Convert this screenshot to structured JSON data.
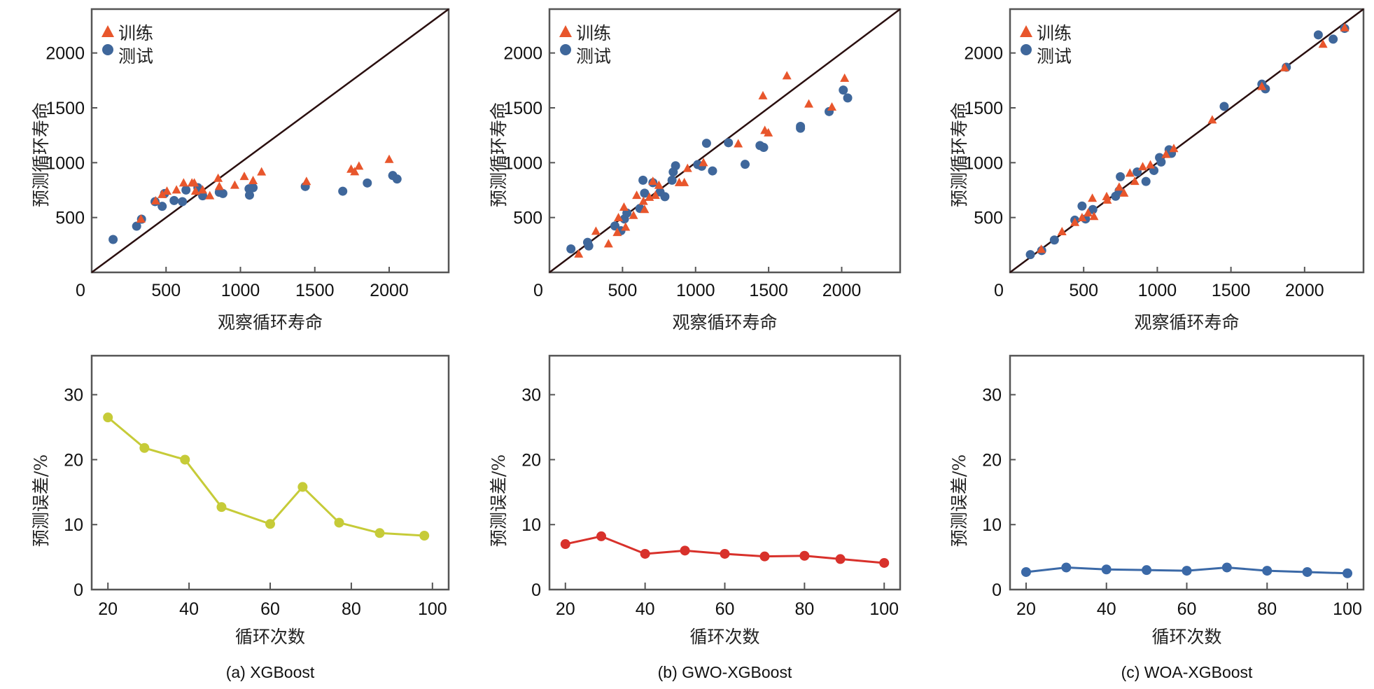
{
  "chart_data": [
    {
      "panel": "a",
      "caption": "(a) XGBoost",
      "scatter": {
        "type": "scatter",
        "xlabel": "观察循环寿命",
        "ylabel": "预测循环寿命",
        "xlim": [
          0,
          2400
        ],
        "ylim": [
          0,
          2400
        ],
        "zero_label": "0",
        "xticks": [
          500,
          1000,
          1500,
          2000
        ],
        "yticks": [
          500,
          1000,
          1500,
          2000
        ],
        "reference_line": "y = x",
        "legend": {
          "position": "top-left",
          "train_label": "训练",
          "test_label": "测试"
        },
        "train": [
          [
            331,
            485
          ],
          [
            430,
            651
          ],
          [
            474,
            709
          ],
          [
            506,
            740
          ],
          [
            570,
            751
          ],
          [
            618,
            815
          ],
          [
            674,
            815
          ],
          [
            690,
            815
          ],
          [
            698,
            740
          ],
          [
            746,
            751
          ],
          [
            794,
            698
          ],
          [
            850,
            857
          ],
          [
            858,
            783
          ],
          [
            962,
            794
          ],
          [
            1026,
            874
          ],
          [
            1085,
            836
          ],
          [
            1142,
            915
          ],
          [
            1444,
            828
          ],
          [
            1744,
            940
          ],
          [
            1768,
            917
          ],
          [
            1797,
            968
          ],
          [
            2000,
            1029
          ]
        ],
        "test": [
          [
            144,
            300
          ],
          [
            302,
            421
          ],
          [
            335,
            485
          ],
          [
            426,
            645
          ],
          [
            474,
            602
          ],
          [
            490,
            719
          ],
          [
            554,
            655
          ],
          [
            610,
            645
          ],
          [
            634,
            751
          ],
          [
            714,
            772
          ],
          [
            746,
            698
          ],
          [
            858,
            730
          ],
          [
            882,
            719
          ],
          [
            1058,
            762
          ],
          [
            1061,
            704
          ],
          [
            1085,
            772
          ],
          [
            1436,
            783
          ],
          [
            1688,
            740
          ],
          [
            1853,
            815
          ],
          [
            2024,
            883
          ],
          [
            2053,
            851
          ]
        ]
      },
      "line": {
        "type": "line",
        "xlabel": "循环次数",
        "ylabel": "预测误差/%",
        "xlim": [
          16,
          104
        ],
        "ylim": [
          0,
          36
        ],
        "xticks": [
          20,
          40,
          60,
          80,
          100
        ],
        "yticks": [
          0,
          10,
          20,
          30
        ],
        "x": [
          20,
          29,
          39,
          48,
          60,
          68,
          77,
          87,
          98
        ],
        "y": [
          26.5,
          21.8,
          20.0,
          12.7,
          10.1,
          15.8,
          10.3,
          8.7,
          8.3
        ],
        "color": "#c6cb38"
      }
    },
    {
      "panel": "b",
      "caption": "(b) GWO-XGBoost",
      "scatter": {
        "type": "scatter",
        "xlabel": "观察循环寿命",
        "ylabel": "预测循环寿命",
        "xlim": [
          0,
          2400
        ],
        "ylim": [
          0,
          2400
        ],
        "zero_label": "0",
        "xticks": [
          500,
          1000,
          1500,
          2000
        ],
        "yticks": [
          500,
          1000,
          1500,
          2000
        ],
        "reference_line": "y = x",
        "legend": {
          "position": "top-left",
          "train_label": "训练",
          "test_label": "测试"
        },
        "train": [
          [
            200,
            167
          ],
          [
            318,
            374
          ],
          [
            404,
            259
          ],
          [
            464,
            363
          ],
          [
            472,
            498
          ],
          [
            510,
            594
          ],
          [
            521,
            412
          ],
          [
            575,
            519
          ],
          [
            597,
            701
          ],
          [
            643,
            647
          ],
          [
            651,
            573
          ],
          [
            684,
            684
          ],
          [
            708,
            829
          ],
          [
            725,
            701
          ],
          [
            749,
            793
          ],
          [
            888,
            818
          ],
          [
            923,
            818
          ],
          [
            945,
            947
          ],
          [
            1054,
            1000
          ],
          [
            1292,
            1171
          ],
          [
            1461,
            1609
          ],
          [
            1474,
            1293
          ],
          [
            1498,
            1271
          ],
          [
            1625,
            1791
          ],
          [
            1775,
            1534
          ],
          [
            1933,
            1506
          ],
          [
            2020,
            1769
          ]
        ],
        "test": [
          [
            147,
            214
          ],
          [
            261,
            274
          ],
          [
            269,
            241
          ],
          [
            448,
            423
          ],
          [
            489,
            380
          ],
          [
            513,
            487
          ],
          [
            530,
            541
          ],
          [
            619,
            583
          ],
          [
            640,
            840
          ],
          [
            651,
            722
          ],
          [
            708,
            818
          ],
          [
            757,
            733
          ],
          [
            790,
            690
          ],
          [
            839,
            840
          ],
          [
            847,
            915
          ],
          [
            863,
            972
          ],
          [
            1015,
            983
          ],
          [
            1042,
            968
          ],
          [
            1075,
            1177
          ],
          [
            1116,
            925
          ],
          [
            1225,
            1182
          ],
          [
            1339,
            985
          ],
          [
            1441,
            1156
          ],
          [
            1466,
            1139
          ],
          [
            1718,
            1331
          ],
          [
            1718,
            1314
          ],
          [
            1914,
            1466
          ],
          [
            2011,
            1662
          ],
          [
            2041,
            1590
          ]
        ]
      },
      "line": {
        "type": "line",
        "xlabel": "循环次数",
        "ylabel": "预测误差/%",
        "xlim": [
          16,
          104
        ],
        "ylim": [
          0,
          36
        ],
        "xticks": [
          20,
          40,
          60,
          80,
          100
        ],
        "yticks": [
          0,
          10,
          20,
          30
        ],
        "x": [
          20,
          29,
          40,
          50,
          60,
          70,
          80,
          89,
          100
        ],
        "y": [
          7.0,
          8.2,
          5.5,
          6.0,
          5.5,
          5.1,
          5.2,
          4.7,
          4.1
        ],
        "color": "#d8312b"
      }
    },
    {
      "panel": "c",
      "caption": "(c) WOA-XGBoost",
      "scatter": {
        "type": "scatter",
        "xlabel": "观察循环寿命",
        "ylabel": "预测循环寿命",
        "xlim": [
          0,
          2400
        ],
        "ylim": [
          0,
          2400
        ],
        "zero_label": "0",
        "xticks": [
          500,
          1000,
          1500,
          2000
        ],
        "yticks": [
          500,
          1000,
          1500,
          2000
        ],
        "reference_line": "y = x",
        "legend": {
          "position": "top-left",
          "train_label": "训练",
          "test_label": "测试"
        },
        "train": [
          [
            212,
            209
          ],
          [
            353,
            370
          ],
          [
            440,
            455
          ],
          [
            489,
            498
          ],
          [
            530,
            541
          ],
          [
            559,
            675
          ],
          [
            570,
            509
          ],
          [
            656,
            690
          ],
          [
            660,
            658
          ],
          [
            741,
            776
          ],
          [
            774,
            722
          ],
          [
            814,
            904
          ],
          [
            847,
            829
          ],
          [
            901,
            962
          ],
          [
            953,
            979
          ],
          [
            1059,
            1075
          ],
          [
            1112,
            1128
          ],
          [
            1373,
            1389
          ],
          [
            1710,
            1694
          ],
          [
            1864,
            1865
          ],
          [
            2125,
            2079
          ],
          [
            2272,
            2229
          ]
        ],
        "test": [
          [
            138,
            162
          ],
          [
            215,
            199
          ],
          [
            301,
            295
          ],
          [
            440,
            476
          ],
          [
            489,
            605
          ],
          [
            513,
            487
          ],
          [
            562,
            573
          ],
          [
            717,
            694
          ],
          [
            749,
            872
          ],
          [
            741,
            744
          ],
          [
            863,
            915
          ],
          [
            923,
            829
          ],
          [
            977,
            929
          ],
          [
            1015,
            1047
          ],
          [
            1026,
            1006
          ],
          [
            1080,
            1118
          ],
          [
            1096,
            1085
          ],
          [
            1454,
            1513
          ],
          [
            1710,
            1716
          ],
          [
            1734,
            1673
          ],
          [
            1876,
            1870
          ],
          [
            2093,
            2165
          ],
          [
            2194,
            2126
          ],
          [
            2272,
            2224
          ]
        ]
      },
      "line": {
        "type": "line",
        "xlabel": "循环次数",
        "ylabel": "预测误差/%",
        "xlim": [
          16,
          104
        ],
        "ylim": [
          0,
          36
        ],
        "xticks": [
          20,
          40,
          60,
          80,
          100
        ],
        "yticks": [
          0,
          10,
          20,
          30
        ],
        "x": [
          20,
          30,
          40,
          50,
          60,
          70,
          80,
          90,
          100
        ],
        "y": [
          2.7,
          3.4,
          3.1,
          3.0,
          2.9,
          3.4,
          2.9,
          2.7,
          2.5
        ],
        "color": "#3b69a7"
      }
    }
  ],
  "colors": {
    "train": "#e8562c",
    "test": "#3f679b",
    "axis": "#555555",
    "reference_line": "#2a0f0f"
  }
}
